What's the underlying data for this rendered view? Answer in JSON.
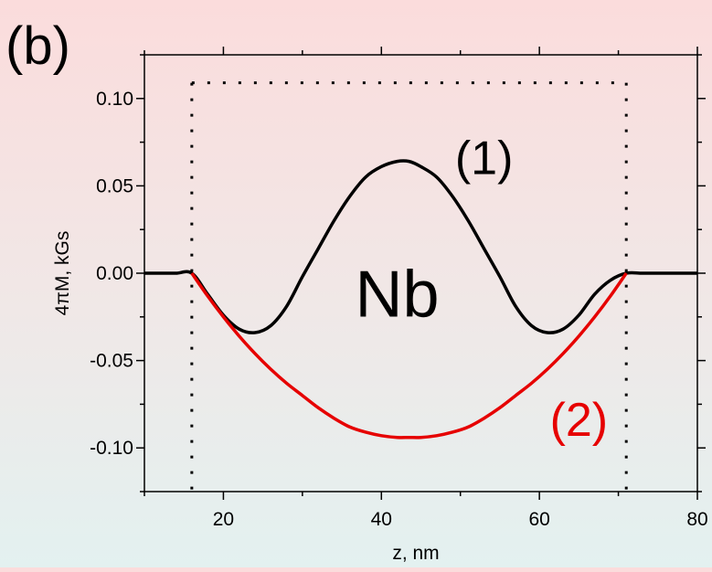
{
  "panel_label": "(b)",
  "chart_data": {
    "type": "line",
    "xlabel": "z, nm",
    "ylabel": "4πM, kGs",
    "xlim": [
      10,
      80
    ],
    "ylim": [
      -0.125,
      0.125
    ],
    "x_ticks": [
      20,
      40,
      60,
      80
    ],
    "x_tick_labels": [
      "20",
      "40",
      "60",
      "80"
    ],
    "y_ticks": [
      0.1,
      0.05,
      0.0,
      -0.05,
      -0.1
    ],
    "y_tick_labels": [
      "0.10",
      "0.05",
      "0.00",
      "-0.05",
      "-0.10"
    ],
    "grid": false,
    "layer_boundaries": [
      16,
      71
    ],
    "dotted_box_top": 0.109,
    "annotations": [
      {
        "text": "(1)",
        "x": 53,
        "y": 0.064,
        "color": "#000000"
      },
      {
        "text": "Nb",
        "x": 42,
        "y": -0.015,
        "color": "#000000"
      },
      {
        "text": "(2)",
        "x": 65,
        "y": -0.086,
        "color": "#e60000"
      }
    ],
    "series": [
      {
        "color": "#000000",
        "x": [
          10,
          12,
          14,
          16,
          18,
          20,
          22,
          24,
          26,
          28,
          30,
          32,
          34,
          36,
          38,
          40,
          42,
          43.5,
          45,
          47,
          49,
          51,
          53,
          55,
          57,
          59,
          61,
          63,
          65,
          67,
          69,
          71,
          73,
          75,
          78,
          80
        ],
        "values": [
          0.0,
          0.0,
          0.0,
          0.0,
          -0.012,
          -0.024,
          -0.032,
          -0.034,
          -0.03,
          -0.019,
          -0.002,
          0.014,
          0.03,
          0.044,
          0.055,
          0.061,
          0.064,
          0.064,
          0.061,
          0.055,
          0.044,
          0.03,
          0.014,
          -0.002,
          -0.019,
          -0.03,
          -0.034,
          -0.032,
          -0.024,
          -0.012,
          -0.004,
          0.0,
          0.0,
          0.0,
          0.0,
          0.0
        ]
      },
      {
        "color": "#e60000",
        "x": [
          16,
          18,
          20,
          22,
          24,
          26,
          28,
          30,
          32,
          34,
          36,
          38,
          40,
          42,
          43.5,
          45,
          47,
          49,
          51,
          53,
          55,
          57,
          59,
          61,
          63,
          65,
          67,
          69,
          71
        ],
        "values": [
          0.0,
          -0.013,
          -0.025,
          -0.036,
          -0.046,
          -0.055,
          -0.063,
          -0.07,
          -0.077,
          -0.083,
          -0.088,
          -0.091,
          -0.093,
          -0.094,
          -0.094,
          -0.094,
          -0.093,
          -0.091,
          -0.088,
          -0.083,
          -0.077,
          -0.07,
          -0.063,
          -0.055,
          -0.046,
          -0.036,
          -0.025,
          -0.013,
          0.0
        ]
      }
    ]
  }
}
